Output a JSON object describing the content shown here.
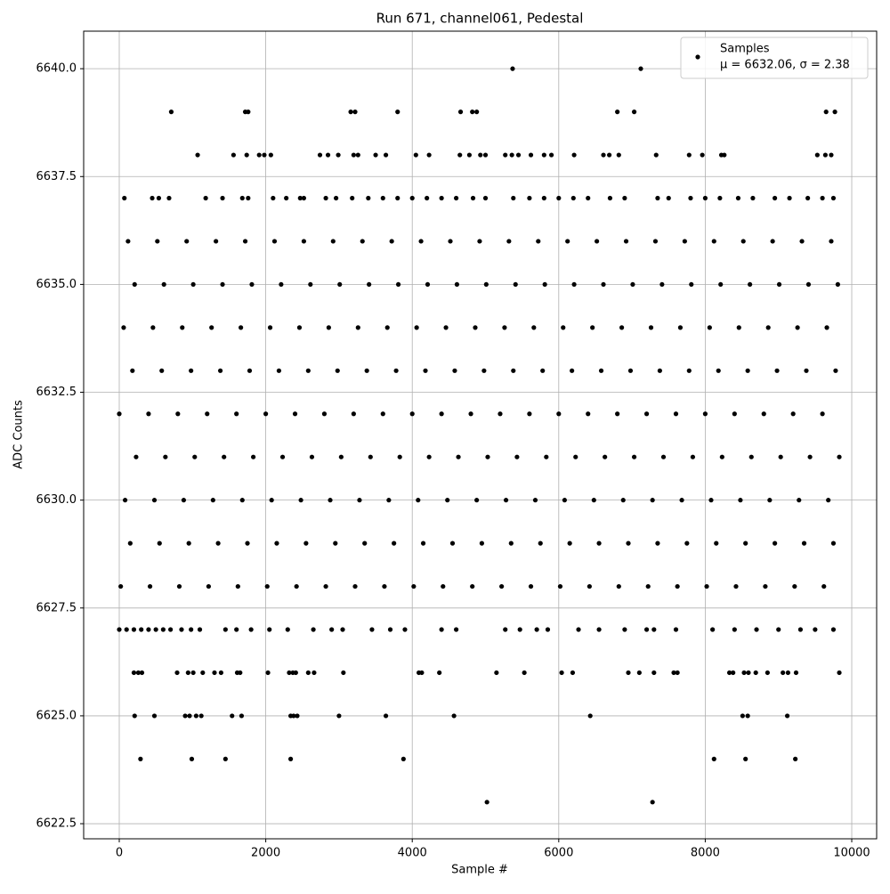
{
  "chart_data": {
    "type": "scatter",
    "title": "Run 671, channel061, Pedestal",
    "x_label": "Sample #",
    "y_label": "ADC Counts",
    "legend": "upper right",
    "legend_annotation": "μ = 6632.06, σ = 2.38",
    "grid": true,
    "xlim": [
      -486,
      10340
    ],
    "ylim": [
      6622.15,
      6640.87
    ],
    "xticks": [
      0,
      2000,
      4000,
      6000,
      8000,
      10000
    ],
    "yticks": [
      {
        "value": 6622.5,
        "label": "6622.5"
      },
      {
        "value": 6625,
        "label": "6625.0"
      },
      {
        "value": 6627.5,
        "label": "6627.5"
      },
      {
        "value": 6630,
        "label": "6630.0"
      },
      {
        "value": 6632.5,
        "label": "6632.5"
      },
      {
        "value": 6635,
        "label": "6635.0"
      },
      {
        "value": 6637.5,
        "label": "6637.5"
      },
      {
        "value": 6640,
        "label": "6640.0"
      }
    ],
    "series": [
      {
        "name": "Samples",
        "color": "#000000",
        "x": [
          5370,
          7120,
          5020,
          7280,
          290,
          990,
          1450,
          2340,
          3880,
          8120,
          8550,
          9230,
          210,
          480,
          900,
          960,
          1050,
          1120,
          1540,
          1670,
          2340,
          2380,
          2430,
          3000,
          3640,
          4570,
          6430,
          8510,
          8580,
          9120,
          200,
          260,
          310,
          790,
          940,
          1010,
          1140,
          1300,
          1390,
          1610,
          1650,
          2030,
          2320,
          2370,
          2410,
          2580,
          2660,
          3060,
          4090,
          4130,
          4370,
          5150,
          5530,
          6040,
          6190,
          6950,
          7100,
          7300,
          7570,
          7620,
          8330,
          8380,
          8530,
          8590,
          8690,
          8850,
          9060,
          9130,
          9240,
          9830,
          0,
          100,
          200,
          300,
          400,
          500,
          600,
          700,
          850,
          980,
          1100,
          1450,
          1600,
          1800,
          2050,
          2300,
          2650,
          2900,
          3050,
          3450,
          3700,
          3900,
          4400,
          4600,
          5270,
          5470,
          5700,
          5850,
          6270,
          6550,
          6900,
          7200,
          7300,
          7600,
          8100,
          8400,
          8700,
          9000,
          9300,
          9500,
          9750,
          20,
          420,
          820,
          1220,
          1620,
          2020,
          2420,
          2820,
          3220,
          3620,
          4020,
          4420,
          4820,
          5220,
          5620,
          6020,
          6420,
          6820,
          7220,
          7620,
          8020,
          8420,
          8820,
          9220,
          9620,
          150,
          550,
          950,
          1350,
          1750,
          2150,
          2550,
          2950,
          3350,
          3750,
          4150,
          4550,
          4950,
          5350,
          5750,
          6150,
          6550,
          6950,
          7350,
          7750,
          8150,
          8550,
          8950,
          9350,
          9750,
          80,
          480,
          880,
          1280,
          1680,
          2080,
          2480,
          2880,
          3280,
          3680,
          4080,
          4480,
          4880,
          5280,
          5680,
          6080,
          6480,
          6880,
          7280,
          7680,
          8080,
          8480,
          8880,
          9280,
          9680,
          230,
          630,
          1030,
          1430,
          1830,
          2230,
          2630,
          3030,
          3430,
          3830,
          4230,
          4630,
          5030,
          5430,
          5830,
          6230,
          6630,
          7030,
          7430,
          7830,
          8230,
          8630,
          9030,
          9430,
          9830,
          0,
          400,
          800,
          1200,
          1600,
          2000,
          2400,
          2800,
          3200,
          3600,
          4000,
          4400,
          4800,
          5200,
          5600,
          6000,
          6400,
          6800,
          7200,
          7600,
          8000,
          8400,
          8800,
          9200,
          9600,
          180,
          580,
          980,
          1380,
          1780,
          2180,
          2580,
          2980,
          3380,
          3780,
          4180,
          4580,
          4980,
          5380,
          5780,
          6180,
          6580,
          6980,
          7380,
          7780,
          8180,
          8580,
          8980,
          9380,
          9780,
          60,
          460,
          860,
          1260,
          1660,
          2060,
          2460,
          2860,
          3260,
          3660,
          4060,
          4460,
          4860,
          5260,
          5660,
          6060,
          6460,
          6860,
          7260,
          7660,
          8060,
          8460,
          8860,
          9260,
          9660,
          210,
          610,
          1010,
          1410,
          1810,
          2210,
          2610,
          3010,
          3410,
          3810,
          4210,
          4610,
          5010,
          5410,
          5810,
          6210,
          6610,
          7010,
          7410,
          7810,
          8210,
          8610,
          9010,
          9410,
          9810,
          120,
          520,
          920,
          1320,
          1720,
          2120,
          2520,
          2920,
          3320,
          3720,
          4120,
          4520,
          4920,
          5320,
          5720,
          6120,
          6520,
          6920,
          7320,
          7720,
          8120,
          8520,
          8920,
          9320,
          9720,
          70,
          450,
          540,
          680,
          1180,
          1410,
          1680,
          1760,
          2100,
          2280,
          2470,
          2520,
          2820,
          2960,
          3180,
          3400,
          3600,
          3800,
          4000,
          4200,
          4400,
          4600,
          4830,
          5000,
          5380,
          5600,
          5800,
          6000,
          6200,
          6400,
          6700,
          6900,
          7350,
          7500,
          7800,
          8000,
          8200,
          8450,
          8650,
          8950,
          9150,
          9400,
          9600,
          9750,
          1070,
          1560,
          1740,
          1910,
          1980,
          2070,
          2740,
          2850,
          2990,
          3200,
          3260,
          3500,
          3640,
          4050,
          4230,
          4650,
          4780,
          4930,
          5000,
          5270,
          5360,
          5450,
          5620,
          5800,
          5900,
          6210,
          6610,
          6690,
          6820,
          7330,
          7780,
          7960,
          8220,
          8260,
          9530,
          9640,
          9720,
          710,
          1720,
          1760,
          3160,
          3220,
          3800,
          4660,
          4820,
          4880,
          6800,
          7030,
          9650,
          9770
        ],
        "values": [
          6640,
          6640,
          6623,
          6623,
          6624,
          6624,
          6624,
          6624,
          6624,
          6624,
          6624,
          6624,
          6625,
          6625,
          6625,
          6625,
          6625,
          6625,
          6625,
          6625,
          6625,
          6625,
          6625,
          6625,
          6625,
          6625,
          6625,
          6625,
          6625,
          6625,
          6626,
          6626,
          6626,
          6626,
          6626,
          6626,
          6626,
          6626,
          6626,
          6626,
          6626,
          6626,
          6626,
          6626,
          6626,
          6626,
          6626,
          6626,
          6626,
          6626,
          6626,
          6626,
          6626,
          6626,
          6626,
          6626,
          6626,
          6626,
          6626,
          6626,
          6626,
          6626,
          6626,
          6626,
          6626,
          6626,
          6626,
          6626,
          6626,
          6626,
          6627,
          6627,
          6627,
          6627,
          6627,
          6627,
          6627,
          6627,
          6627,
          6627,
          6627,
          6627,
          6627,
          6627,
          6627,
          6627,
          6627,
          6627,
          6627,
          6627,
          6627,
          6627,
          6627,
          6627,
          6627,
          6627,
          6627,
          6627,
          6627,
          6627,
          6627,
          6627,
          6627,
          6627,
          6627,
          6627,
          6627,
          6627,
          6627,
          6627,
          6627,
          6628,
          6628,
          6628,
          6628,
          6628,
          6628,
          6628,
          6628,
          6628,
          6628,
          6628,
          6628,
          6628,
          6628,
          6628,
          6628,
          6628,
          6628,
          6628,
          6628,
          6628,
          6628,
          6628,
          6628,
          6628,
          6629,
          6629,
          6629,
          6629,
          6629,
          6629,
          6629,
          6629,
          6629,
          6629,
          6629,
          6629,
          6629,
          6629,
          6629,
          6629,
          6629,
          6629,
          6629,
          6629,
          6629,
          6629,
          6629,
          6629,
          6629,
          6630,
          6630,
          6630,
          6630,
          6630,
          6630,
          6630,
          6630,
          6630,
          6630,
          6630,
          6630,
          6630,
          6630,
          6630,
          6630,
          6630,
          6630,
          6630,
          6630,
          6630,
          6630,
          6630,
          6630,
          6630,
          6631,
          6631,
          6631,
          6631,
          6631,
          6631,
          6631,
          6631,
          6631,
          6631,
          6631,
          6631,
          6631,
          6631,
          6631,
          6631,
          6631,
          6631,
          6631,
          6631,
          6631,
          6631,
          6631,
          6631,
          6631,
          6632,
          6632,
          6632,
          6632,
          6632,
          6632,
          6632,
          6632,
          6632,
          6632,
          6632,
          6632,
          6632,
          6632,
          6632,
          6632,
          6632,
          6632,
          6632,
          6632,
          6632,
          6632,
          6632,
          6632,
          6632,
          6633,
          6633,
          6633,
          6633,
          6633,
          6633,
          6633,
          6633,
          6633,
          6633,
          6633,
          6633,
          6633,
          6633,
          6633,
          6633,
          6633,
          6633,
          6633,
          6633,
          6633,
          6633,
          6633,
          6633,
          6633,
          6634,
          6634,
          6634,
          6634,
          6634,
          6634,
          6634,
          6634,
          6634,
          6634,
          6634,
          6634,
          6634,
          6634,
          6634,
          6634,
          6634,
          6634,
          6634,
          6634,
          6634,
          6634,
          6634,
          6634,
          6634,
          6635,
          6635,
          6635,
          6635,
          6635,
          6635,
          6635,
          6635,
          6635,
          6635,
          6635,
          6635,
          6635,
          6635,
          6635,
          6635,
          6635,
          6635,
          6635,
          6635,
          6635,
          6635,
          6635,
          6635,
          6635,
          6636,
          6636,
          6636,
          6636,
          6636,
          6636,
          6636,
          6636,
          6636,
          6636,
          6636,
          6636,
          6636,
          6636,
          6636,
          6636,
          6636,
          6636,
          6636,
          6636,
          6636,
          6636,
          6636,
          6636,
          6636,
          6637,
          6637,
          6637,
          6637,
          6637,
          6637,
          6637,
          6637,
          6637,
          6637,
          6637,
          6637,
          6637,
          6637,
          6637,
          6637,
          6637,
          6637,
          6637,
          6637,
          6637,
          6637,
          6637,
          6637,
          6637,
          6637,
          6637,
          6637,
          6637,
          6637,
          6637,
          6637,
          6637,
          6637,
          6637,
          6637,
          6637,
          6637,
          6637,
          6637,
          6637,
          6637,
          6637,
          6637,
          6638,
          6638,
          6638,
          6638,
          6638,
          6638,
          6638,
          6638,
          6638,
          6638,
          6638,
          6638,
          6638,
          6638,
          6638,
          6638,
          6638,
          6638,
          6638,
          6638,
          6638,
          6638,
          6638,
          6638,
          6638,
          6638,
          6638,
          6638,
          6638,
          6638,
          6638,
          6638,
          6638,
          6638,
          6638,
          6638,
          6638,
          6639,
          6639,
          6639,
          6639,
          6639,
          6639,
          6639,
          6639,
          6639,
          6639,
          6639,
          6639,
          6639
        ]
      }
    ]
  }
}
